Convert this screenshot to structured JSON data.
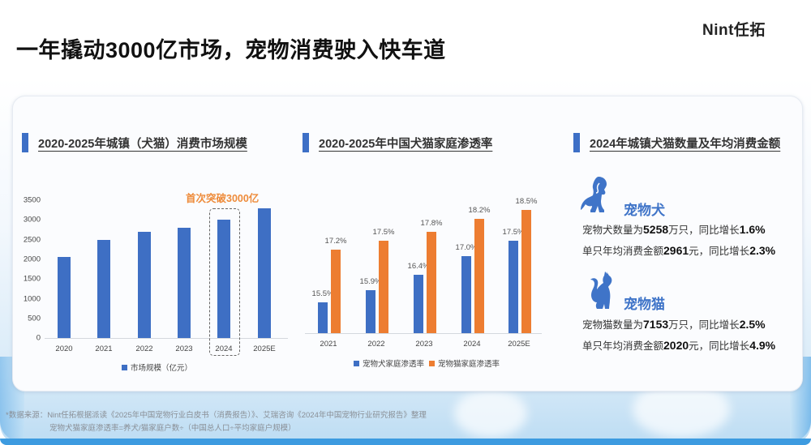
{
  "header": {
    "title": "一年撬动3000亿市场，宠物消费驶入快车道",
    "logo": "Nint任拓"
  },
  "colors": {
    "accent_blue": "#3e6fc4",
    "accent_orange": "#ed7d31",
    "annotation_orange": "#ee8b3a",
    "pet_label_blue": "#3f74c8"
  },
  "sections": {
    "market": {
      "title": "2020-2025年城镇（犬猫）消费市场规模"
    },
    "penetration": {
      "title": "2020-2025年中国犬猫家庭渗透率"
    },
    "pets": {
      "title": "2024年城镇犬猫数量及年均消费金额"
    }
  },
  "chart_data": [
    {
      "type": "bar",
      "title": "2020-2025年城镇（犬猫）消费市场规模",
      "categories": [
        "2020",
        "2021",
        "2022",
        "2023",
        "2024",
        "2025E"
      ],
      "series": [
        {
          "name": "市场规模（亿元）",
          "values": [
            2065,
            2482,
            2706,
            2793,
            3002,
            3300
          ],
          "color": "#3e6fc4"
        }
      ],
      "xlabel": "",
      "ylabel": "",
      "ylim": [
        0,
        3500
      ],
      "yticks": [
        0,
        500,
        1000,
        1500,
        2000,
        2500,
        3000,
        3500
      ],
      "annotation": {
        "text": "首次突破3000亿",
        "target": "2024"
      },
      "legend_position": "bottom",
      "grid": false
    },
    {
      "type": "bar",
      "title": "2020-2025年中国犬猫家庭渗透率",
      "categories": [
        "2021",
        "2022",
        "2023",
        "2024",
        "2025E"
      ],
      "series": [
        {
          "name": "宠物犬家庭渗透率",
          "values": [
            15.5,
            15.9,
            16.4,
            17.0,
            17.5
          ],
          "labels": [
            "15.5%",
            "15.9%",
            "16.4%",
            "17.0%",
            "17.5%"
          ],
          "color": "#3e6fc4"
        },
        {
          "name": "宠物猫家庭渗透率",
          "values": [
            17.2,
            17.5,
            17.8,
            18.2,
            18.5
          ],
          "labels": [
            "17.2%",
            "17.5%",
            "17.8%",
            "18.2%",
            "18.5%"
          ],
          "color": "#ed7d31"
        }
      ],
      "unit": "%",
      "legend_position": "bottom",
      "grid": false
    }
  ],
  "pets": {
    "dog": {
      "icon": "dog-icon",
      "name": "宠物犬",
      "line1": {
        "pre": "宠物犬数量为",
        "num": "5258",
        "mid": "万只，同比增长",
        "pct": "1.6%"
      },
      "line2": {
        "pre": "单只年均消费金额",
        "num": "2961",
        "mid": "元，同比增长",
        "pct": "2.3%"
      }
    },
    "cat": {
      "icon": "cat-icon",
      "name": "宠物猫",
      "line1": {
        "pre": "宠物猫数量为",
        "num": "7153",
        "mid": "万只，同比增长",
        "pct": "2.5%"
      },
      "line2": {
        "pre": "单只年均消费金额",
        "num": "2020",
        "mid": "元，同比增长",
        "pct": "4.9%"
      }
    }
  },
  "footer": {
    "source_line1": "*数据来源：Nint任拓根据派读《2025年中国宠物行业白皮书（消费报告）》、艾瑞咨询《2024年中国宠物行业研究报告》整理",
    "source_line2": "宠物犬猫家庭渗透率=养犬/猫家庭户数÷（中国总人口÷平均家庭户规模）"
  }
}
